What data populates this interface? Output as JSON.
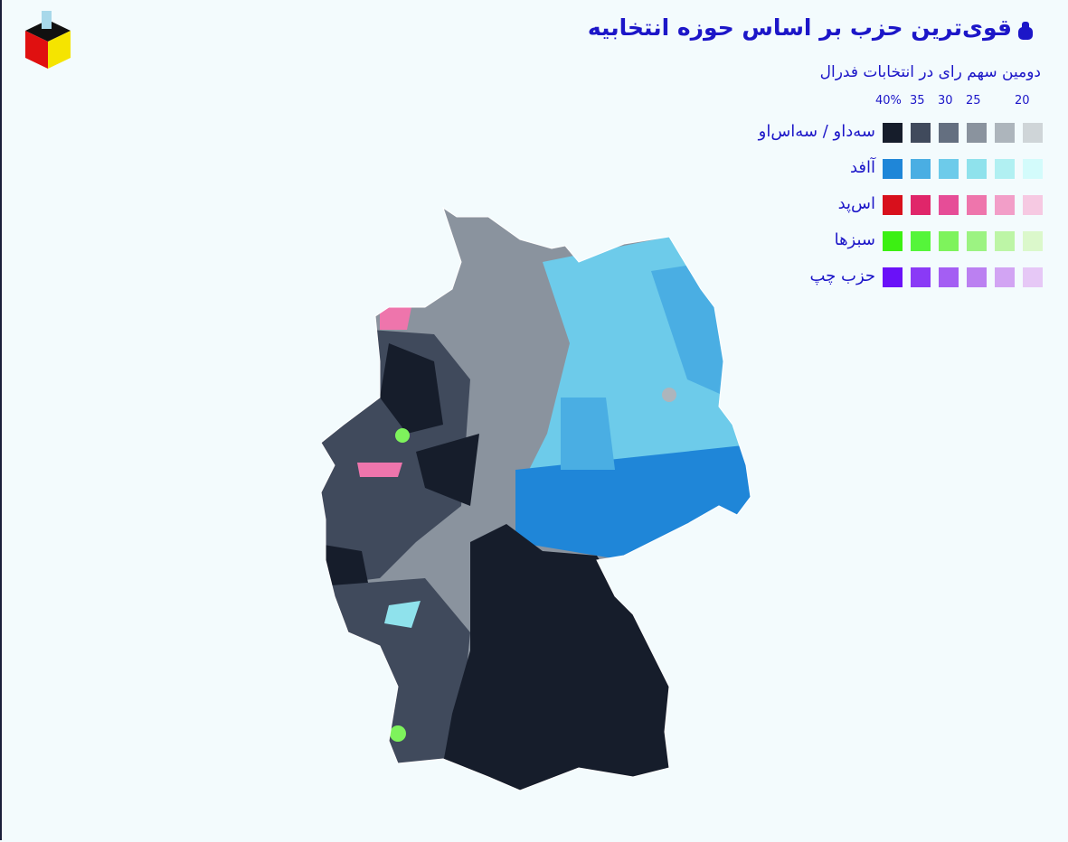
{
  "header": {
    "title": "قوی‌ترین حزب بر اساس حوزه انتخابیه"
  },
  "legend": {
    "subtitle": "دومین سهم رای در انتخابات فدرال",
    "scale": [
      "40%",
      "35",
      "30",
      "25",
      "20"
    ],
    "parties": [
      {
        "name": "سه‌داو / سه‌اس‌او",
        "colors": [
          "#161d2b",
          "#404a5c",
          "#646f80",
          "#8a939e",
          "#adb5bc",
          "#cfd5d8"
        ]
      },
      {
        "name": "آافد",
        "colors": [
          "#1f86d8",
          "#4aaee3",
          "#6dcbea",
          "#8fe2ec",
          "#b1f0f2",
          "#d3fbfb"
        ]
      },
      {
        "name": "اس‌پد",
        "colors": [
          "#d8101c",
          "#e0266a",
          "#e64d97",
          "#ee75ac",
          "#f29ec8",
          "#f6c9e2"
        ]
      },
      {
        "name": "سبزها",
        "colors": [
          "#3cf012",
          "#55f53a",
          "#7ef35c",
          "#9cf382",
          "#bdf5a6",
          "#dbf8cb"
        ]
      },
      {
        "name": "حزب چپ",
        "colors": [
          "#6a11f8",
          "#8a3af6",
          "#a45ef3",
          "#bb80f1",
          "#d2a4f3",
          "#e6c8f6"
        ]
      }
    ]
  }
}
